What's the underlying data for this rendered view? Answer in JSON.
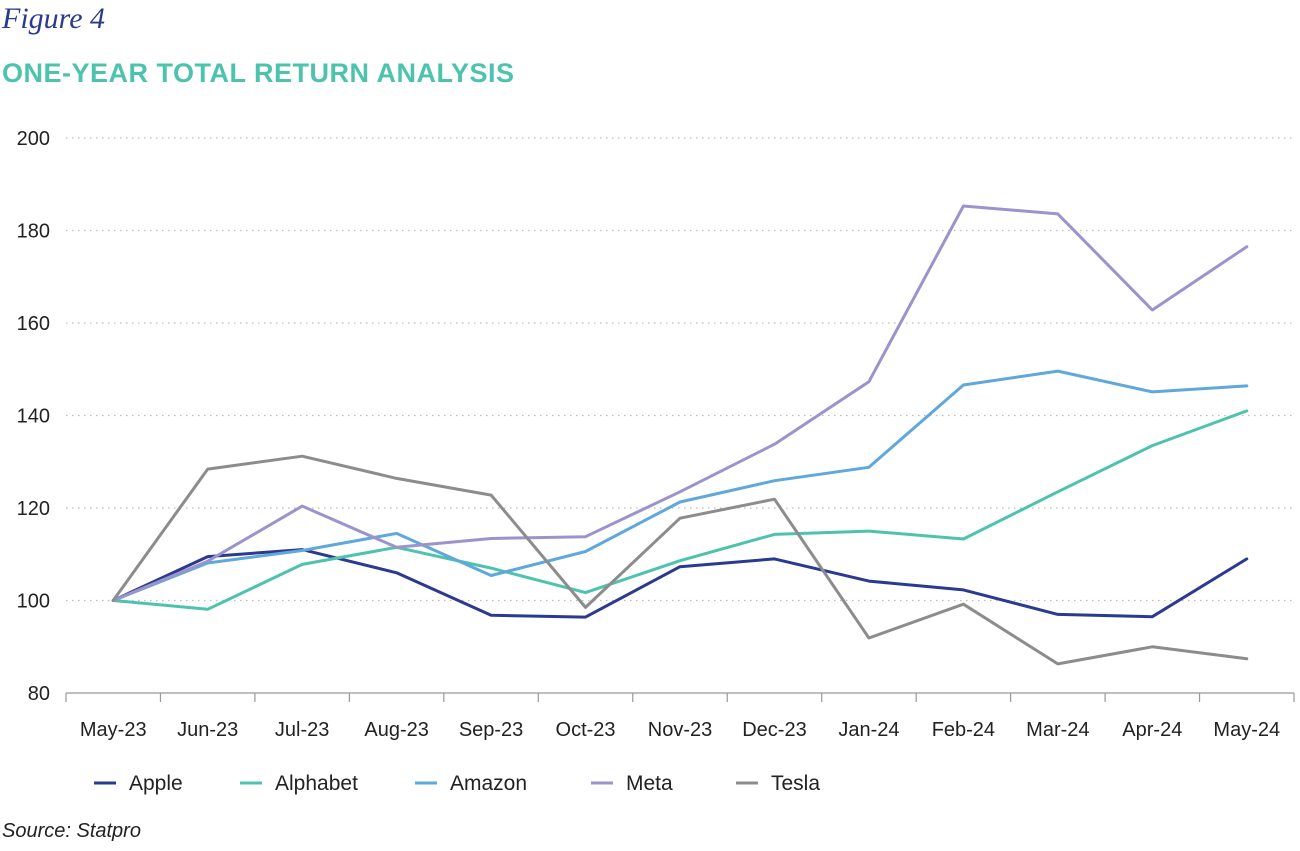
{
  "figure_label": "Figure 4",
  "title": "ONE-YEAR TOTAL RETURN ANALYSIS",
  "source": "Source: Statpro",
  "colors": {
    "title": "#4dc3ad",
    "figure_label": "#2b3a8c",
    "grid": "#bdbdbd",
    "axis": "#999999"
  },
  "chart_data": {
    "type": "line",
    "title": "ONE-YEAR TOTAL RETURN ANALYSIS",
    "xlabel": "",
    "ylabel": "",
    "ylim": [
      80,
      200
    ],
    "yticks": [
      80,
      100,
      120,
      140,
      160,
      180,
      200
    ],
    "grid": true,
    "legend_position": "bottom",
    "categories": [
      "May-23",
      "Jun-23",
      "Jul-23",
      "Aug-23",
      "Sep-23",
      "Oct-23",
      "Nov-23",
      "Dec-23",
      "Jan-24",
      "Feb-24",
      "Mar-24",
      "Apr-24",
      "May-24"
    ],
    "series": [
      {
        "name": "Apple",
        "color": "#2b3990",
        "values": [
          100,
          109.5,
          111,
          106,
          96.8,
          96.4,
          107.3,
          109,
          104.2,
          102.3,
          97,
          96.5,
          109
        ]
      },
      {
        "name": "Alphabet",
        "color": "#4dc3ad",
        "values": [
          100,
          98.1,
          107.8,
          111.5,
          107,
          101.7,
          108.6,
          114.3,
          115,
          113.3,
          123.5,
          133.5,
          141
        ]
      },
      {
        "name": "Amazon",
        "color": "#5fa8dc",
        "values": [
          100,
          108.1,
          110.8,
          114.5,
          105.4,
          110.6,
          121.3,
          125.9,
          128.8,
          146.6,
          149.6,
          145.1,
          146.4
        ]
      },
      {
        "name": "Meta",
        "color": "#9b94cc",
        "values": [
          100,
          108.5,
          120.4,
          111.5,
          113.4,
          113.8,
          123.5,
          133.8,
          147.3,
          185.3,
          183.6,
          162.8,
          176.5
        ]
      },
      {
        "name": "Tesla",
        "color": "#8c8c8c",
        "values": [
          100,
          128.4,
          131.2,
          126.4,
          122.8,
          98.5,
          117.8,
          121.9,
          91.9,
          99.2,
          86.3,
          90,
          87.4
        ]
      }
    ]
  }
}
